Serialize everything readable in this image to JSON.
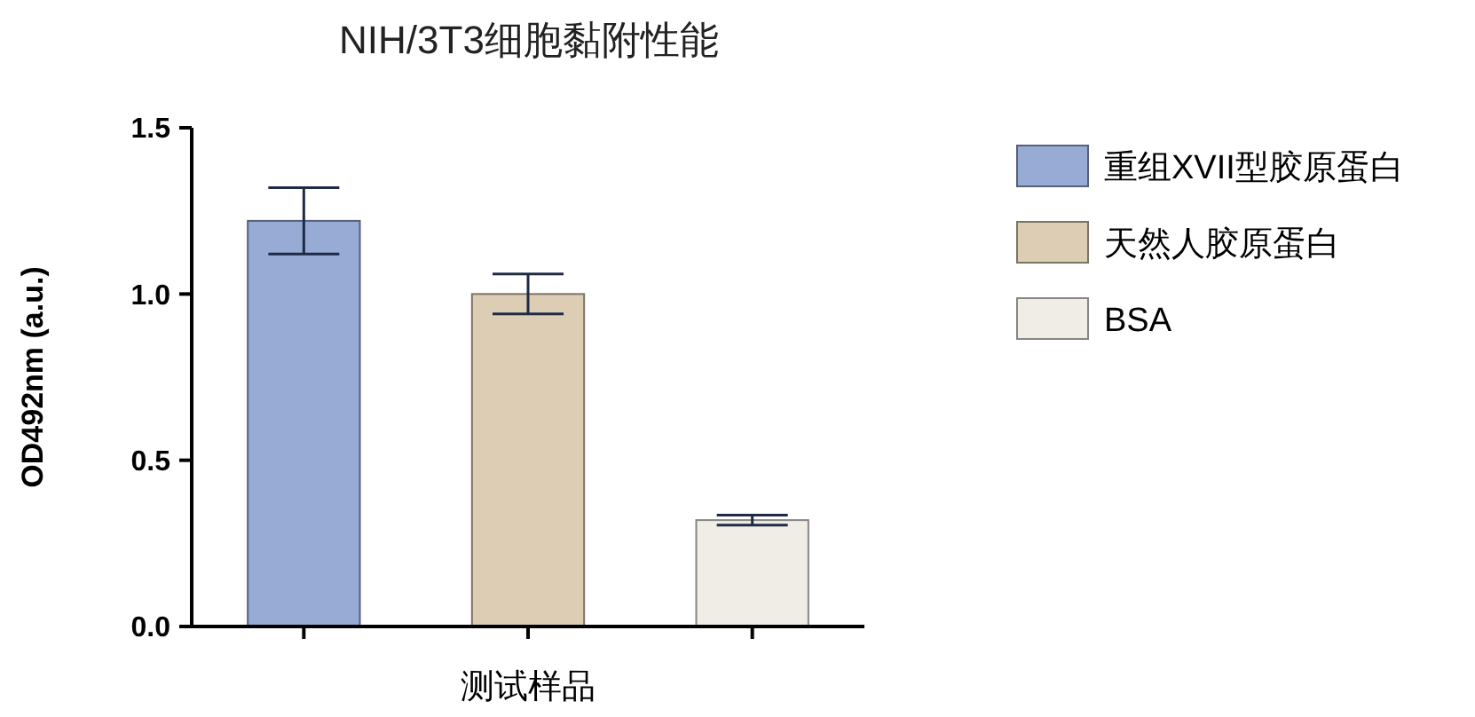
{
  "chart_data": {
    "type": "bar",
    "title": "NIH/3T3细胞黏附性能",
    "xlabel": "测试样品",
    "ylabel": "OD492nm (a.u.)",
    "categories": [
      null,
      null,
      null
    ],
    "series": [
      {
        "name": "重组XVII型胶原蛋白",
        "color": "#97abd5",
        "values": [
          1.22,
          null,
          null
        ],
        "errors": [
          0.1,
          null,
          null
        ]
      },
      {
        "name": "天然人胶原蛋白",
        "color": "#dccdb4",
        "values": [
          null,
          1.0,
          null
        ],
        "errors": [
          null,
          0.06,
          null
        ]
      },
      {
        "name": "BSA",
        "color": "#f0ede7",
        "values": [
          null,
          null,
          0.32
        ],
        "errors": [
          null,
          null,
          0.015
        ]
      }
    ],
    "ylim": [
      0,
      1.5
    ],
    "yticks": [
      {
        "value": 0,
        "label": "0.0"
      },
      0.5,
      {
        "value": 1,
        "label": "1.0"
      },
      1.5
    ],
    "grid": false,
    "legend": "right"
  }
}
